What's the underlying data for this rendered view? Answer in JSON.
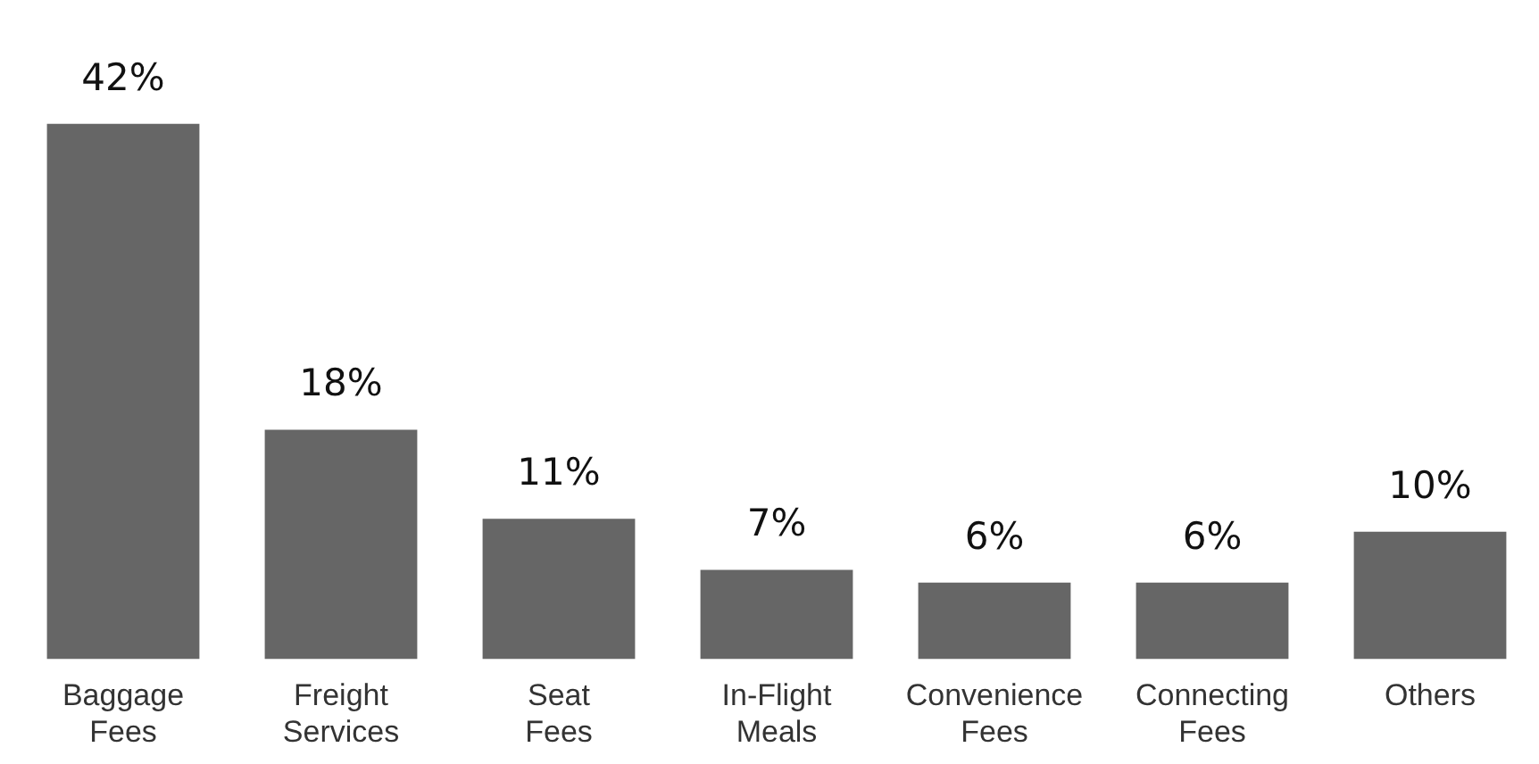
{
  "chart_data": {
    "type": "bar",
    "categories": [
      "Baggage Fees",
      "Freight Services",
      "Seat Fees",
      "In-Flight Meals",
      "Convenience Fees",
      "Connecting Fees",
      "Others"
    ],
    "values": [
      42,
      18,
      11,
      7,
      6,
      6,
      10
    ],
    "value_labels": [
      "42%",
      "18%",
      "11%",
      "7%",
      "6%",
      "6%",
      "10%"
    ],
    "color": "#666666",
    "relative": false
  }
}
